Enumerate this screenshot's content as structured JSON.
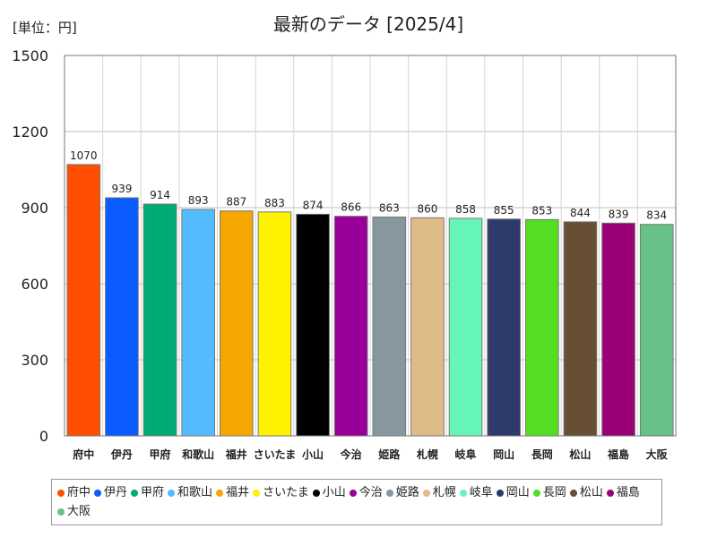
{
  "chart_data": {
    "type": "bar",
    "title": "最新のデータ [2025/4]",
    "unit_label": "[単位：円]",
    "ylim": [
      0,
      1500
    ],
    "yticks": [
      "0",
      "300",
      "600",
      "900",
      "1200",
      "1500"
    ],
    "yticks_values": [
      0,
      300,
      600,
      900,
      1200,
      1500
    ],
    "grid": true,
    "legend_position": "bottom",
    "categories": [
      "府中",
      "伊丹",
      "甲府",
      "和歌山",
      "福井",
      "さいたま",
      "小山",
      "今治",
      "姫路",
      "札幌",
      "岐阜",
      "岡山",
      "長岡",
      "松山",
      "福島",
      "大阪"
    ],
    "values": [
      1070,
      939,
      914,
      893,
      887,
      883,
      874,
      866,
      863,
      860,
      858,
      855,
      853,
      844,
      839,
      834
    ],
    "value_labels": [
      "1070",
      "939",
      "914",
      "893",
      "887",
      "883",
      "874",
      "866",
      "863",
      "860",
      "858",
      "855",
      "853",
      "844",
      "839",
      "834"
    ],
    "colors": [
      "#ff4e00",
      "#0a5cff",
      "#00aa77",
      "#55bbff",
      "#f5a600",
      "#fff200",
      "#000000",
      "#990099",
      "#8896a0",
      "#dfbb88",
      "#66f5b8",
      "#2e3a6a",
      "#55dd22",
      "#664f33",
      "#990077",
      "#66c288"
    ]
  }
}
